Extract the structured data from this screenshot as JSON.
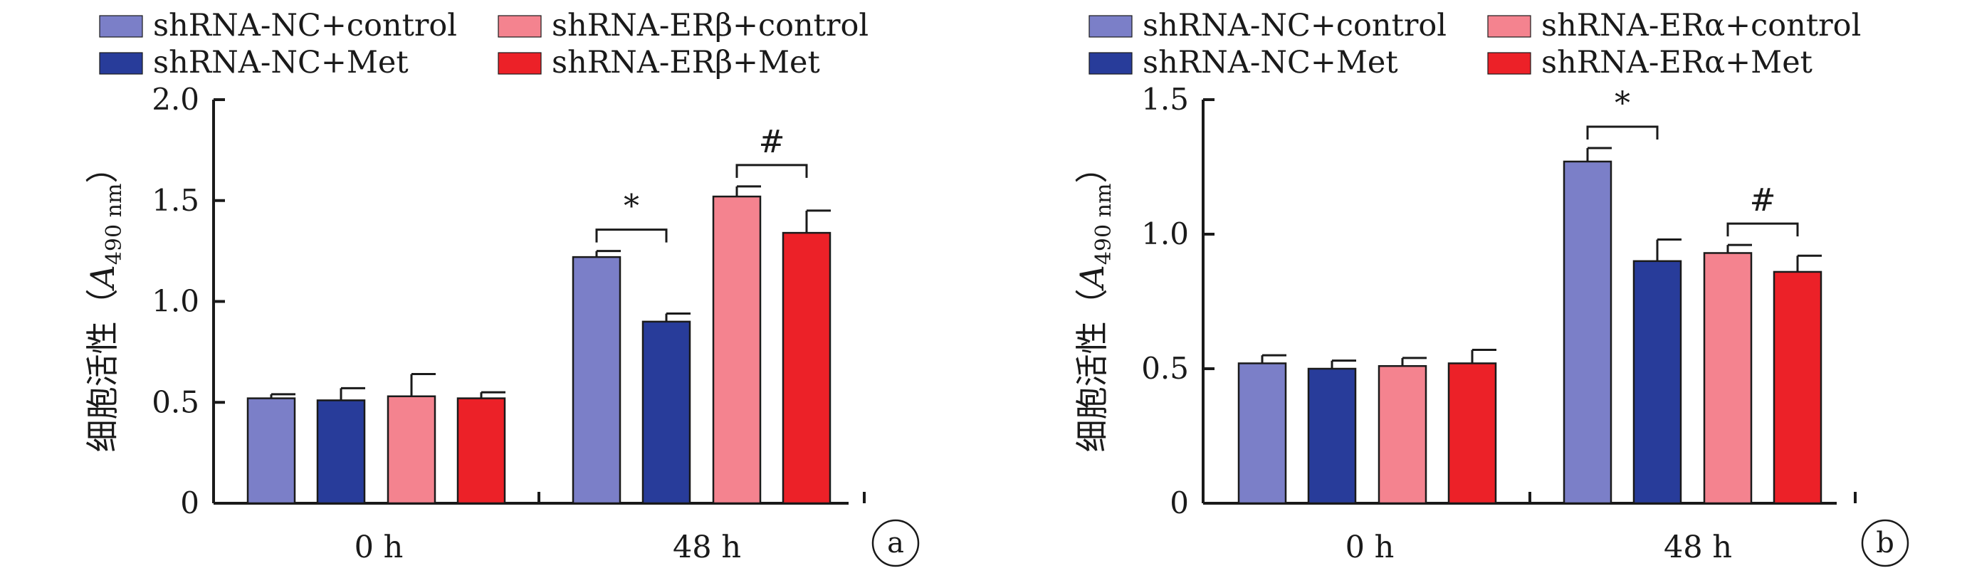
{
  "chart_data": [
    {
      "type": "bar",
      "panel_label": "a",
      "categories": [
        "0 h",
        "48 h"
      ],
      "ylabel_main": "细胞活性（",
      "ylabel_var": "A",
      "ylabel_sub": "490 nm",
      "ylabel_close": "）",
      "ylim": [
        0,
        2.0
      ],
      "yticks": [
        "0",
        "0.5",
        "1.0",
        "1.5",
        "2.0"
      ],
      "ytick_values": [
        0,
        0.5,
        1.0,
        1.5,
        2.0
      ],
      "legend_position": "top",
      "series": [
        {
          "name": "shRNA-NC+control",
          "color": "#7b7fc8",
          "values": [
            0.52,
            1.22
          ],
          "errors": [
            0.02,
            0.03
          ]
        },
        {
          "name": "shRNA-NC+Met",
          "color": "#283c9a",
          "values": [
            0.51,
            0.9
          ],
          "errors": [
            0.06,
            0.04
          ]
        },
        {
          "name": "shRNA-ERβ+control",
          "color": "#f4838f",
          "values": [
            0.53,
            1.52
          ],
          "errors": [
            0.11,
            0.05
          ]
        },
        {
          "name": "shRNA-ERβ+Met",
          "color": "#ec2128",
          "values": [
            0.52,
            1.34
          ],
          "errors": [
            0.03,
            0.11
          ]
        }
      ],
      "annotations": [
        {
          "text": "*",
          "group": 1,
          "from_series": 0,
          "to_series": 1
        },
        {
          "text": "#",
          "group": 1,
          "from_series": 2,
          "to_series": 3
        }
      ]
    },
    {
      "type": "bar",
      "panel_label": "b",
      "categories": [
        "0 h",
        "48 h"
      ],
      "ylabel_main": "细胞活性（",
      "ylabel_var": "A",
      "ylabel_sub": "490 nm",
      "ylabel_close": "）",
      "ylim": [
        0,
        1.5
      ],
      "yticks": [
        "0",
        "0.5",
        "1.0",
        "1.5"
      ],
      "ytick_values": [
        0,
        0.5,
        1.0,
        1.5
      ],
      "legend_position": "top",
      "series": [
        {
          "name": "shRNA-NC+control",
          "color": "#7b7fc8",
          "values": [
            0.52,
            1.27
          ],
          "errors": [
            0.03,
            0.05
          ]
        },
        {
          "name": "shRNA-NC+Met",
          "color": "#283c9a",
          "values": [
            0.5,
            0.9
          ],
          "errors": [
            0.03,
            0.08
          ]
        },
        {
          "name": "shRNA-ERα+control",
          "color": "#f4838f",
          "values": [
            0.51,
            0.93
          ],
          "errors": [
            0.03,
            0.03
          ]
        },
        {
          "name": "shRNA-ERα+Met",
          "color": "#ec2128",
          "values": [
            0.52,
            0.86
          ],
          "errors": [
            0.05,
            0.06
          ]
        }
      ],
      "annotations": [
        {
          "text": "*",
          "group": 1,
          "from_series": 0,
          "to_series": 1
        },
        {
          "text": "#",
          "group": 1,
          "from_series": 2,
          "to_series": 3
        }
      ]
    }
  ]
}
